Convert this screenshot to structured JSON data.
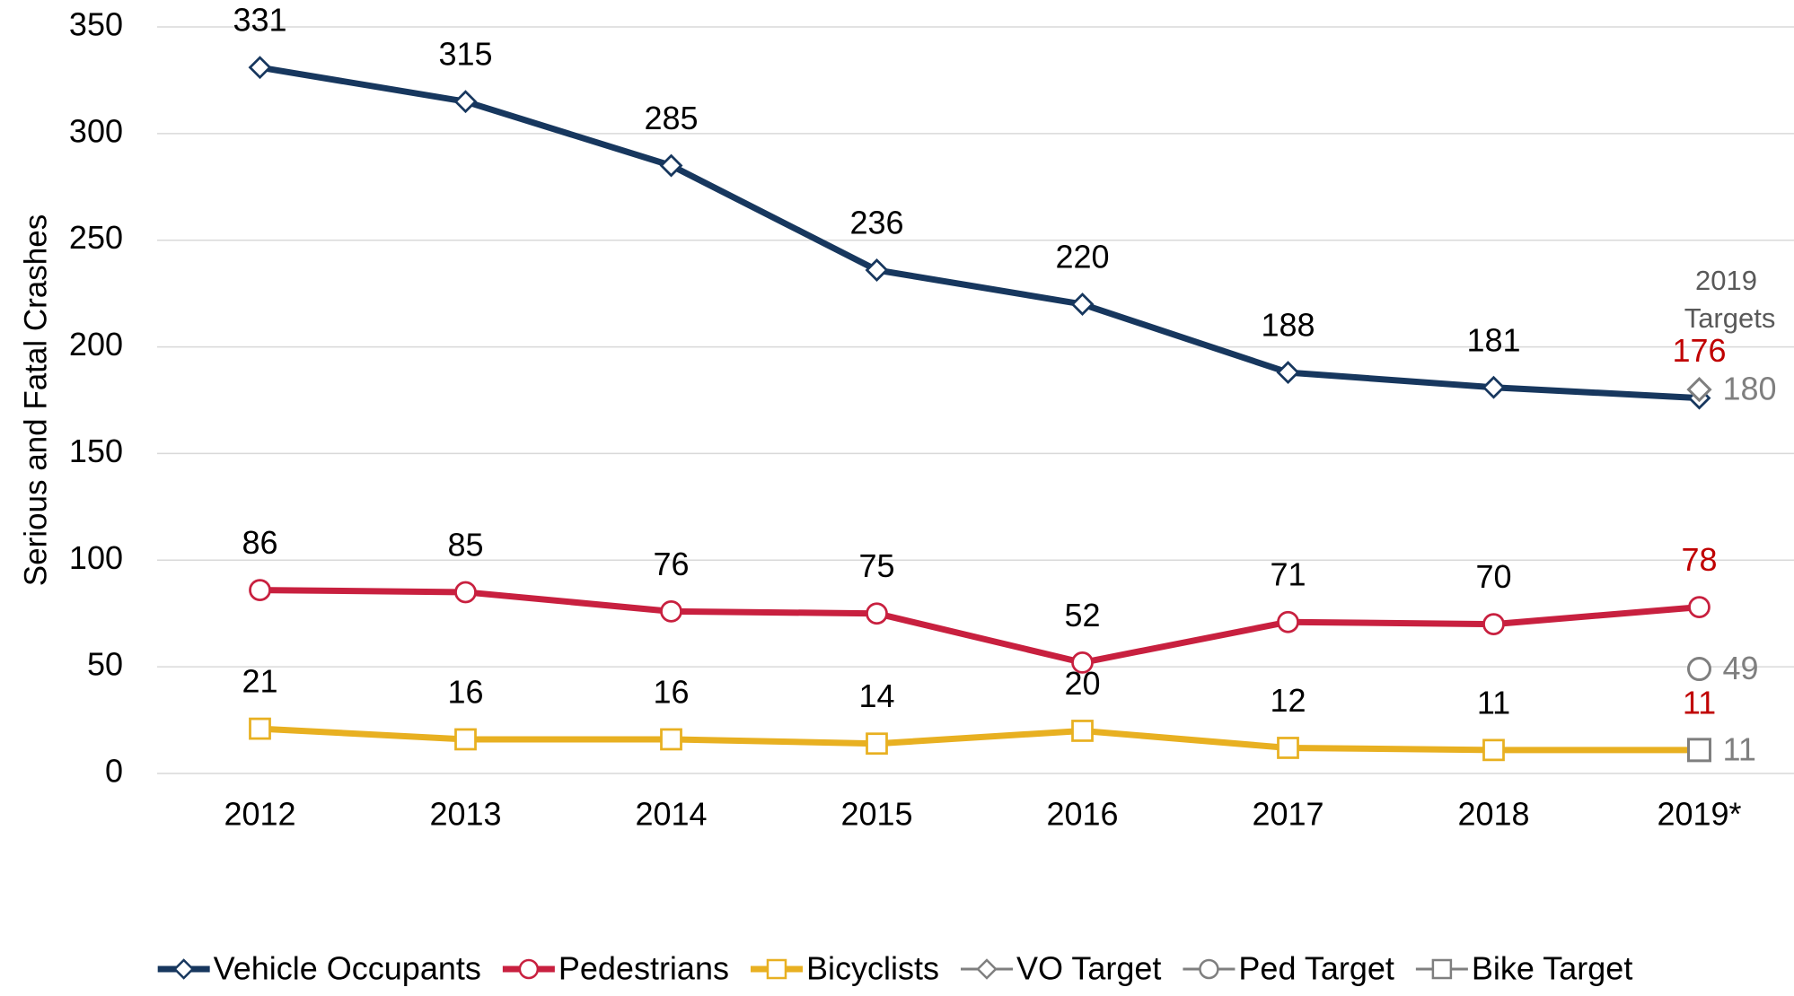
{
  "chart_data": {
    "type": "line",
    "y_label": "Serious and Fatal Crashes",
    "categories": [
      "2012",
      "2013",
      "2014",
      "2015",
      "2016",
      "2017",
      "2018",
      "2019*"
    ],
    "ylim": [
      0,
      350
    ],
    "yticks": [
      0,
      50,
      100,
      150,
      200,
      250,
      300,
      350
    ],
    "grid": true,
    "annotation": "2019 Targets",
    "last_label_color": "#c00000",
    "series": [
      {
        "name": "Vehicle Occupants",
        "color": "#17375e",
        "marker": "diamond",
        "values": [
          331,
          315,
          285,
          236,
          220,
          188,
          181,
          176
        ]
      },
      {
        "name": "Pedestrians",
        "color": "#c8203f",
        "marker": "circle",
        "values": [
          86,
          85,
          76,
          75,
          52,
          71,
          70,
          78
        ]
      },
      {
        "name": "Bicyclists",
        "color": "#e8b021",
        "marker": "square",
        "values": [
          21,
          16,
          16,
          14,
          20,
          12,
          11,
          11
        ]
      },
      {
        "name": "VO Target",
        "color": "#7f7f7f",
        "marker": "diamond",
        "target": true,
        "values": [
          null,
          null,
          null,
          null,
          null,
          null,
          null,
          180
        ]
      },
      {
        "name": "Ped Target",
        "color": "#7f7f7f",
        "marker": "circle",
        "target": true,
        "values": [
          null,
          null,
          null,
          null,
          null,
          null,
          null,
          49
        ]
      },
      {
        "name": "Bike Target",
        "color": "#7f7f7f",
        "marker": "square",
        "target": true,
        "values": [
          null,
          null,
          null,
          null,
          null,
          null,
          null,
          11
        ]
      }
    ],
    "legend": "bottom"
  }
}
